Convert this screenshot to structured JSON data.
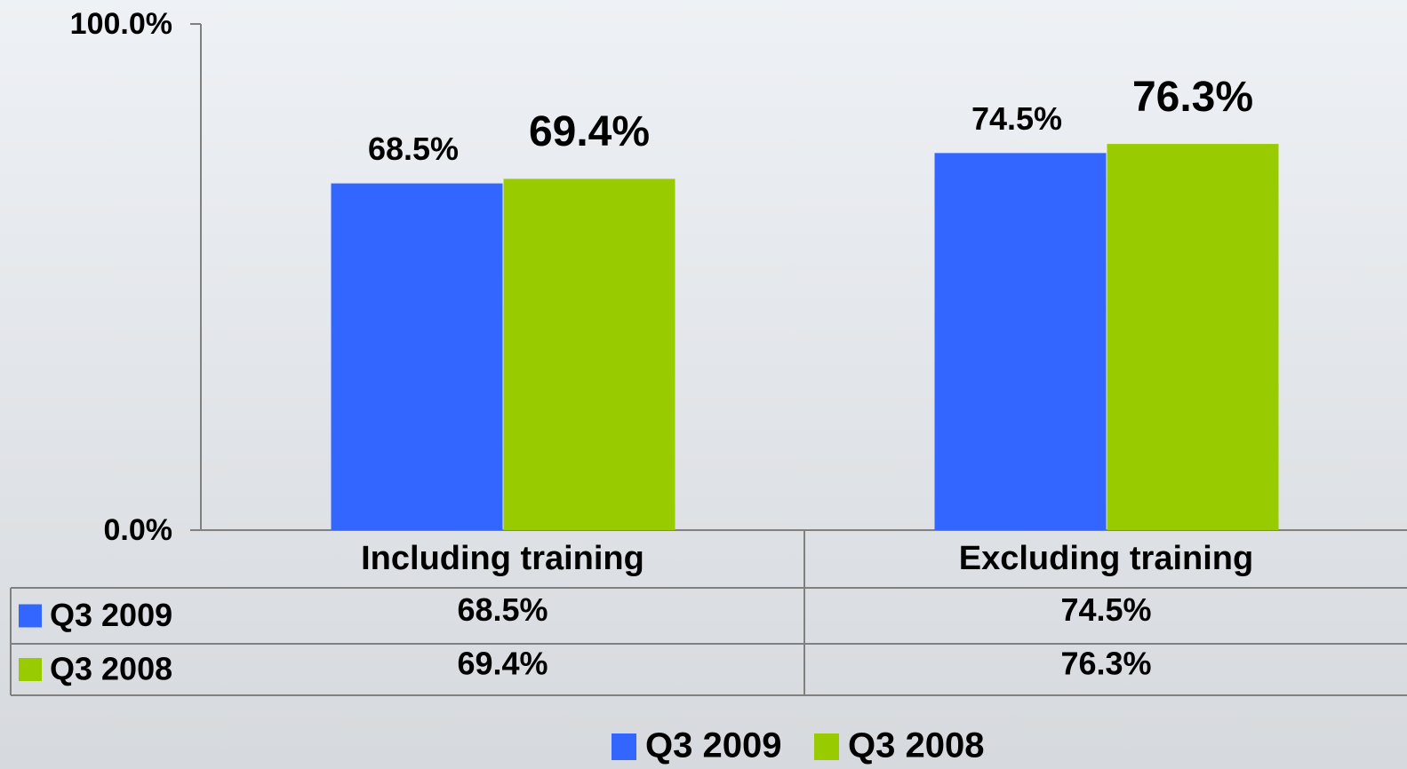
{
  "chart_data": {
    "type": "bar",
    "categories": [
      "Including training",
      "Excluding training"
    ],
    "series": [
      {
        "name": "Q3 2009",
        "color": "#3366ff",
        "values": [
          68.5,
          74.5
        ],
        "value_labels": [
          "68.5%",
          "74.5%"
        ]
      },
      {
        "name": "Q3 2008",
        "color": "#99cc00",
        "values": [
          69.4,
          76.3
        ],
        "value_labels": [
          "69.4%",
          "76.3%"
        ]
      }
    ],
    "ylim": [
      0,
      100
    ],
    "yticks": [
      {
        "value": 0,
        "label": "0.0%"
      },
      {
        "value": 100,
        "label": "100.0%"
      }
    ],
    "legend": "bottom"
  }
}
